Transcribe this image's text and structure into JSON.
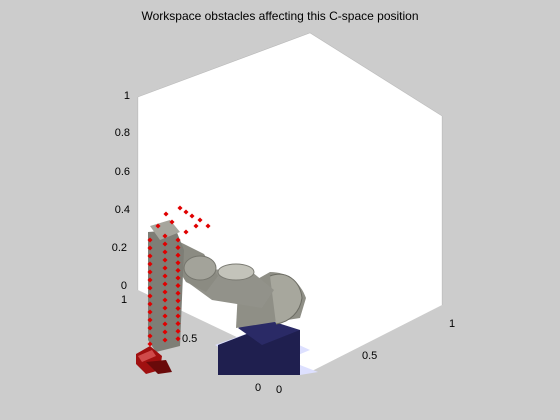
{
  "figure": {
    "title": "Workspace obstacles affecting this C-space position",
    "colors": {
      "background": "#cccccc",
      "axes_face": "#ffffff",
      "obstacle_points": "#e00000",
      "robot_links": "#8f8f86",
      "base": "#1f1f4f",
      "gripper": "#a01010"
    }
  },
  "axes": {
    "z_ticks": [
      "0",
      "0.2",
      "0.4",
      "0.6",
      "0.8",
      "1"
    ],
    "y_ticks_left": [
      "0.5",
      "1"
    ],
    "x_ticks_right": [
      "0.5",
      "1"
    ],
    "origin_ticks": [
      "0",
      "0"
    ]
  }
}
